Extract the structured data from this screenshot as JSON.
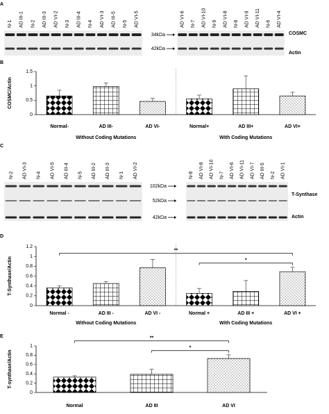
{
  "blots": [
    {
      "panel": "A",
      "left_lanes": [
        "N-1",
        "AD III-1",
        "N-2",
        "AD III-3",
        "AD VI-2",
        "N-3",
        "AD III-4",
        "N-4",
        "AD VI-3",
        "AD III-5",
        "N-5",
        "AD VI-5"
      ],
      "right_lanes": [
        "AD VI-6",
        "N-7",
        "AD VI-10",
        "N-9",
        "AD VI-8",
        "N-8",
        "AD VI-9",
        "AD VI-11",
        "N-6",
        "AD VI-4"
      ],
      "markers": [
        "34kDa",
        "42kDa"
      ],
      "targets": [
        "COSMC",
        "Actin"
      ]
    },
    {
      "panel": "C",
      "left_lanes": [
        "N-2",
        "AD VI-3",
        "N-4",
        "AD VI-5",
        "AD III-4",
        "N-5",
        "AD III-2",
        "AD III-3",
        "N-1",
        "AD VI-2"
      ],
      "right_lanes": [
        "N-8",
        "AD VI-8",
        "AD VI-10",
        "N-7",
        "AD VI-6",
        "AD VI-11",
        "AD VI-7",
        "AD III-5",
        "N-2",
        "AD VI-1"
      ],
      "markers": [
        "102kDa",
        "52kDa",
        "42kDa"
      ],
      "targets": [
        "T-Synthase",
        "Actin"
      ]
    }
  ],
  "chart_data": [
    {
      "type": "bar",
      "panel": "B",
      "y_label": "COSMC/Actin",
      "categories": [
        "Normal-",
        "AD III-",
        "AD VI-",
        "Normal+",
        "AD III+",
        "AD VI+"
      ],
      "values": [
        0.65,
        0.98,
        0.46,
        0.55,
        0.9,
        0.65
      ],
      "errors": [
        0.2,
        0.12,
        0.11,
        0.13,
        0.45,
        0.13
      ],
      "patterns": [
        "diamond",
        "grid",
        "dots",
        "diamond",
        "grid",
        "dots"
      ],
      "groups": [
        {
          "label": "Without Coding Mutations",
          "span": [
            0,
            2
          ]
        },
        {
          "label": "With Coding Mutations",
          "span": [
            3,
            5
          ]
        }
      ],
      "ylim": [
        0,
        1.5
      ],
      "yticks": [
        0,
        0.5,
        1,
        1.5
      ]
    },
    {
      "type": "bar",
      "panel": "D",
      "y_label": "T-Synthase/Actin",
      "categories": [
        "Normal -",
        "AD III -",
        "AD VI -",
        "Normal +",
        "AD III +",
        "AD VI +"
      ],
      "values": [
        0.36,
        0.45,
        0.77,
        0.25,
        0.29,
        0.69
      ],
      "errors": [
        0.04,
        0.04,
        0.17,
        0.1,
        0.22,
        0.09
      ],
      "patterns": [
        "diamond",
        "grid",
        "dots",
        "diamond",
        "grid",
        "dots"
      ],
      "groups": [
        {
          "label": "Without Coding Mutations",
          "span": [
            0,
            2
          ]
        },
        {
          "label": "With Coding Mutations",
          "span": [
            3,
            5
          ]
        }
      ],
      "significance": [
        {
          "span": [
            0,
            5
          ],
          "label": "**"
        },
        {
          "span": [
            3,
            5
          ],
          "label": "*"
        }
      ],
      "ylim": [
        0,
        1.2
      ],
      "yticks": [
        0,
        0.2,
        0.4,
        0.6,
        0.8,
        1,
        1.2
      ]
    },
    {
      "type": "bar",
      "panel": "E",
      "y_label": "T-synthase/Actin",
      "categories": [
        "Normal",
        "AD III",
        "AD VI"
      ],
      "values": [
        0.33,
        0.39,
        0.73
      ],
      "errors": [
        0.03,
        0.11,
        0.08
      ],
      "patterns": [
        "diamond",
        "grid",
        "dots"
      ],
      "significance": [
        {
          "span": [
            0,
            2
          ],
          "label": "**"
        },
        {
          "span": [
            1,
            2
          ],
          "label": "*"
        }
      ],
      "ylim": [
        0,
        1
      ],
      "yticks": [
        0,
        0.2,
        0.4,
        0.6,
        0.8,
        1
      ]
    }
  ]
}
